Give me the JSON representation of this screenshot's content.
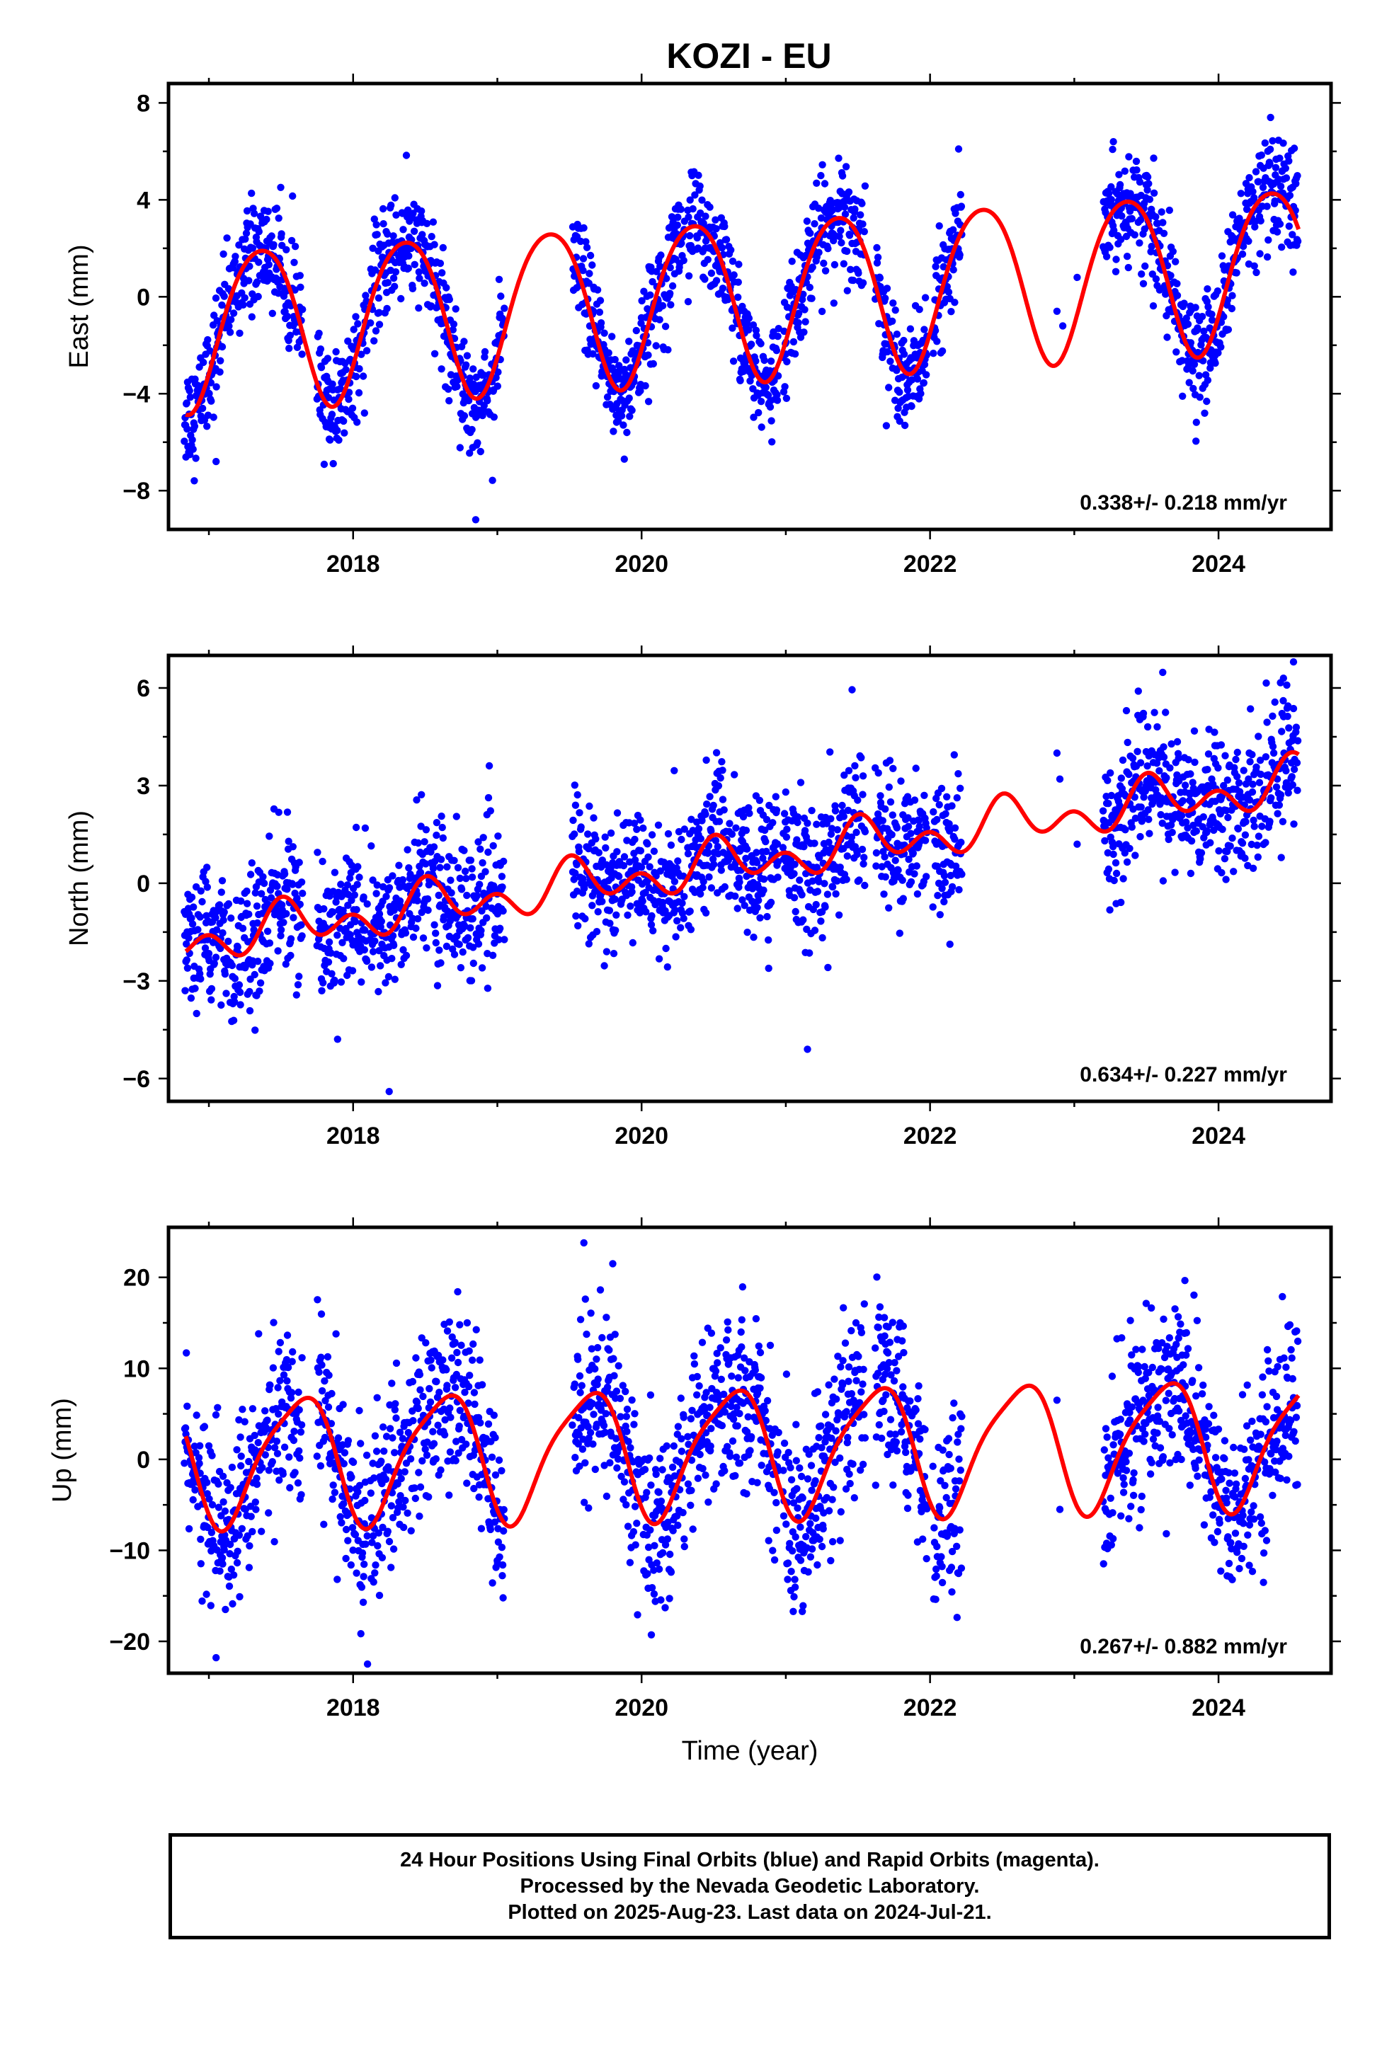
{
  "title": "KOZI - EU",
  "colors": {
    "data": "#0000ff",
    "model": "#ff0000",
    "frame": "#000000"
  },
  "chart_data": [
    {
      "type": "scatter",
      "panel": "east",
      "ylabel": "East (mm)",
      "xlabel": "",
      "xlim": [
        2016.72,
        2024.78
      ],
      "ylim": [
        -9.6,
        8.8
      ],
      "xticks": [
        2018,
        2020,
        2022,
        2024
      ],
      "xtick_labels": [
        "2018",
        "2020",
        "2022",
        "2024"
      ],
      "yticks": [
        -8,
        -4,
        0,
        4,
        8
      ],
      "ytick_labels": [
        "−8",
        "−4",
        "0",
        "4",
        "8"
      ],
      "rate_label": "0.338+/- 0.218 mm/yr",
      "series": [
        {
          "name": "data",
          "style": "points",
          "segments": [
            [
              2016.83,
              2017.65
            ],
            [
              2017.75,
              2018.1
            ],
            [
              2018.12,
              2019.05
            ],
            [
              2019.52,
              2020.3
            ],
            [
              2020.32,
              2020.95
            ],
            [
              2020.98,
              2021.55
            ],
            [
              2021.62,
              2021.98
            ],
            [
              2022.02,
              2022.22
            ],
            [
              2023.2,
              2024.55
            ]
          ],
          "extra_points": [
            [
              2022.88,
              -0.6
            ],
            [
              2022.92,
              -1.2
            ],
            [
              2023.02,
              0.8
            ],
            [
              2018.85,
              -9.2
            ],
            [
              2019.88,
              -6.7
            ],
            [
              2017.05,
              -6.8
            ]
          ],
          "scatter": 1.1
        },
        {
          "name": "model",
          "style": "line",
          "intercept": 0.0,
          "rate": 0.338,
          "ref_year": 2020.5,
          "annual": {
            "amp": 3.3,
            "phase": 2020.36
          },
          "semiannual": {
            "amp": 0.35,
            "phase": 2020.1
          }
        }
      ]
    },
    {
      "type": "scatter",
      "panel": "north",
      "ylabel": "North (mm)",
      "xlabel": "",
      "xlim": [
        2016.72,
        2024.78
      ],
      "ylim": [
        -6.7,
        7.0
      ],
      "xticks": [
        2018,
        2020,
        2022,
        2024
      ],
      "xtick_labels": [
        "2018",
        "2020",
        "2022",
        "2024"
      ],
      "yticks": [
        -6,
        -3,
        0,
        3,
        6
      ],
      "ytick_labels": [
        "−6",
        "−3",
        "0",
        "3",
        "6"
      ],
      "rate_label": "0.634+/- 0.227 mm/yr",
      "series": [
        {
          "name": "data",
          "style": "points",
          "segments": [
            [
              2016.83,
              2017.65
            ],
            [
              2017.75,
              2018.1
            ],
            [
              2018.12,
              2019.05
            ],
            [
              2019.52,
              2020.3
            ],
            [
              2020.32,
              2020.95
            ],
            [
              2020.98,
              2021.55
            ],
            [
              2021.62,
              2021.98
            ],
            [
              2022.02,
              2022.22
            ],
            [
              2023.2,
              2024.55
            ]
          ],
          "extra_points": [
            [
              2022.88,
              4.0
            ],
            [
              2022.9,
              3.2
            ],
            [
              2023.02,
              1.2
            ],
            [
              2018.25,
              -6.4
            ],
            [
              2021.15,
              -5.1
            ],
            [
              2024.52,
              6.8
            ],
            [
              2024.45,
              6.3
            ]
          ],
          "scatter": 1.05
        },
        {
          "name": "model",
          "style": "line",
          "intercept": 0.55,
          "rate": 0.634,
          "ref_year": 2020.5,
          "annual": {
            "amp": 0.45,
            "phase": 2020.55
          },
          "semiannual": {
            "amp": 0.5,
            "phase": 2020.5
          }
        }
      ]
    },
    {
      "type": "scatter",
      "panel": "up",
      "ylabel": "Up (mm)",
      "xlabel": "Time (year)",
      "xlim": [
        2016.72,
        2024.78
      ],
      "ylim": [
        -23.5,
        25.5
      ],
      "xticks": [
        2018,
        2020,
        2022,
        2024
      ],
      "xtick_labels": [
        "2018",
        "2020",
        "2022",
        "2024"
      ],
      "yticks": [
        -20,
        -10,
        0,
        10,
        20
      ],
      "ytick_labels": [
        "−20",
        "−10",
        "0",
        "10",
        "20"
      ],
      "rate_label": "0.267+/- 0.882 mm/yr",
      "series": [
        {
          "name": "data",
          "style": "points",
          "segments": [
            [
              2016.83,
              2017.65
            ],
            [
              2017.75,
              2018.1
            ],
            [
              2018.12,
              2019.05
            ],
            [
              2019.52,
              2020.3
            ],
            [
              2020.32,
              2020.95
            ],
            [
              2020.98,
              2021.55
            ],
            [
              2021.62,
              2021.98
            ],
            [
              2022.02,
              2022.22
            ],
            [
              2023.2,
              2024.55
            ]
          ],
          "extra_points": [
            [
              2022.88,
              6.5
            ],
            [
              2022.9,
              -5.5
            ],
            [
              2019.6,
              23.8
            ],
            [
              2019.8,
              21.5
            ],
            [
              2018.1,
              -22.5
            ],
            [
              2017.05,
              -21.8
            ]
          ],
          "scatter": 4.8
        },
        {
          "name": "model",
          "style": "line",
          "intercept": 1.0,
          "rate": 0.267,
          "ref_year": 2020.5,
          "annual": {
            "amp": 6.9,
            "phase": 2020.62
          },
          "semiannual": {
            "amp": 1.4,
            "phase": 2020.3
          }
        }
      ]
    }
  ],
  "footer": {
    "line1": "24 Hour Positions Using Final Orbits (blue) and Rapid Orbits (magenta).",
    "line2": "Processed by the Nevada Geodetic Laboratory.",
    "line3": "Plotted on 2025-Aug-23. Last data on 2024-Jul-21."
  }
}
